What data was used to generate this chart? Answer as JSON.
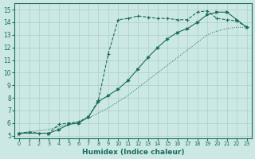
{
  "xlabel": "Humidex (Indice chaleur)",
  "bg_color": "#cce8e4",
  "grid_color": "#aacfca",
  "line_color": "#1a6b5e",
  "xlim": [
    -0.5,
    23.5
  ],
  "ylim": [
    4.8,
    15.5
  ],
  "xticks": [
    0,
    1,
    2,
    3,
    4,
    5,
    6,
    7,
    8,
    9,
    10,
    11,
    12,
    13,
    14,
    15,
    16,
    17,
    18,
    19,
    20,
    21,
    22,
    23
  ],
  "yticks": [
    5,
    6,
    7,
    8,
    9,
    10,
    11,
    12,
    13,
    14,
    15
  ],
  "line_dot_x": [
    0,
    1,
    2,
    3,
    4,
    5,
    6,
    7,
    8,
    9,
    10,
    11,
    12,
    13,
    14,
    15,
    16,
    17,
    18,
    19,
    20,
    21,
    22,
    23
  ],
  "line_dot_y": [
    5.2,
    5.3,
    5.4,
    5.5,
    5.7,
    5.9,
    6.1,
    6.4,
    6.8,
    7.2,
    7.7,
    8.2,
    8.8,
    9.4,
    10.0,
    10.6,
    11.2,
    11.8,
    12.4,
    13.0,
    13.3,
    13.5,
    13.6,
    13.6
  ],
  "line_dash_x": [
    0,
    1,
    2,
    3,
    4,
    5,
    6,
    7,
    8,
    9,
    10,
    11,
    12,
    13,
    14,
    15,
    16,
    17,
    18,
    19,
    20,
    21,
    22,
    23
  ],
  "line_dash_y": [
    5.2,
    5.3,
    5.2,
    5.2,
    5.9,
    6.0,
    6.1,
    6.5,
    7.8,
    11.5,
    14.2,
    14.3,
    14.5,
    14.4,
    14.3,
    14.3,
    14.2,
    14.2,
    14.8,
    14.9,
    14.3,
    14.2,
    14.1,
    13.6
  ],
  "line_solid_x": [
    0,
    3,
    4,
    5,
    6,
    7,
    8,
    9,
    10,
    11,
    12,
    13,
    14,
    15,
    16,
    17,
    18,
    19,
    20,
    21,
    22,
    23
  ],
  "line_solid_y": [
    5.2,
    5.2,
    5.5,
    5.9,
    6.0,
    6.5,
    7.7,
    8.2,
    8.7,
    9.4,
    10.3,
    11.2,
    12.0,
    12.7,
    13.2,
    13.5,
    14.0,
    14.6,
    14.8,
    14.8,
    14.2,
    13.6
  ]
}
